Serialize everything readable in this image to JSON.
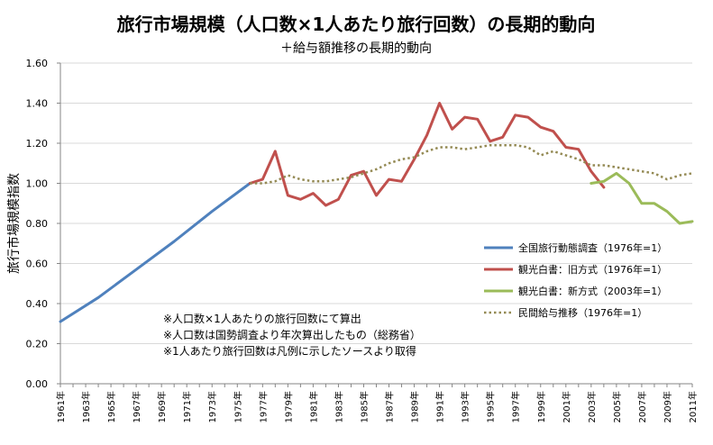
{
  "chart_data": {
    "type": "line",
    "title": "旅行市場規模（人口数×1人あたり旅行回数）の長期的動向",
    "subtitle": "＋給与額推移の長期的動向",
    "ylabel": "旅行市場規模指数",
    "xlabel": "",
    "ylim": [
      0,
      1.6
    ],
    "yticks": [
      "0.00",
      "0.20",
      "0.40",
      "0.60",
      "0.80",
      "1.00",
      "1.20",
      "1.40",
      "1.60"
    ],
    "xlim": [
      1961,
      2011
    ],
    "xtick_labels": [
      "1961年",
      "1963年",
      "1965年",
      "1967年",
      "1969年",
      "1971年",
      "1973年",
      "1975年",
      "1977年",
      "1979年",
      "1981年",
      "1983年",
      "1985年",
      "1987年",
      "1989年",
      "1991年",
      "1993年",
      "1995年",
      "1997年",
      "1999年",
      "2001年",
      "2003年",
      "2005年",
      "2007年",
      "2009年",
      "2011年"
    ],
    "grid": "horizontal",
    "legend_position": "lower-right",
    "series": [
      {
        "name": "全国旅行動態調査（1976年=1）",
        "color": "#4f81bd",
        "style": "solid",
        "x": [
          1961,
          1964,
          1967,
          1970,
          1973,
          1976
        ],
        "y": [
          0.31,
          0.43,
          0.57,
          0.71,
          0.86,
          1.0
        ]
      },
      {
        "name": "観光白書：旧方式（1976年=1）",
        "color": "#c0504d",
        "style": "solid",
        "x": [
          1976,
          1977,
          1978,
          1979,
          1980,
          1981,
          1982,
          1983,
          1984,
          1985,
          1986,
          1987,
          1988,
          1989,
          1990,
          1991,
          1992,
          1993,
          1994,
          1995,
          1996,
          1997,
          1998,
          1999,
          2000,
          2001,
          2002,
          2003,
          2004
        ],
        "y": [
          1.0,
          1.02,
          1.16,
          0.94,
          0.92,
          0.95,
          0.89,
          0.92,
          1.04,
          1.06,
          0.94,
          1.02,
          1.01,
          1.12,
          1.24,
          1.4,
          1.27,
          1.33,
          1.32,
          1.21,
          1.23,
          1.34,
          1.33,
          1.28,
          1.26,
          1.18,
          1.17,
          1.06,
          0.98
        ]
      },
      {
        "name": "観光白書：新方式（2003年=1）",
        "color": "#9bbb59",
        "style": "solid",
        "x": [
          2003,
          2004,
          2005,
          2006,
          2007,
          2008,
          2009,
          2010,
          2011
        ],
        "y": [
          1.0,
          1.01,
          1.05,
          1.0,
          0.9,
          0.9,
          0.86,
          0.8,
          0.81
        ]
      },
      {
        "name": "民間給与推移（1976年=1）",
        "color": "#948a54",
        "style": "dotted",
        "x": [
          1976,
          1977,
          1978,
          1979,
          1980,
          1981,
          1982,
          1983,
          1984,
          1985,
          1986,
          1987,
          1988,
          1989,
          1990,
          1991,
          1992,
          1993,
          1994,
          1995,
          1996,
          1997,
          1998,
          1999,
          2000,
          2001,
          2002,
          2003,
          2004,
          2005,
          2006,
          2007,
          2008,
          2009,
          2010,
          2011
        ],
        "y": [
          1.0,
          1.0,
          1.01,
          1.04,
          1.02,
          1.01,
          1.01,
          1.02,
          1.03,
          1.05,
          1.07,
          1.1,
          1.12,
          1.13,
          1.16,
          1.18,
          1.18,
          1.17,
          1.18,
          1.19,
          1.19,
          1.19,
          1.18,
          1.14,
          1.16,
          1.14,
          1.12,
          1.09,
          1.09,
          1.08,
          1.07,
          1.06,
          1.05,
          1.02,
          1.04,
          1.05
        ]
      }
    ],
    "annotations": [
      "※人口数×1人あたりの旅行回数にて算出",
      "※人口数は国勢調査より年次算出したもの（総務省）",
      "※1人あたり旅行回数は凡例に示したソースより取得"
    ]
  }
}
